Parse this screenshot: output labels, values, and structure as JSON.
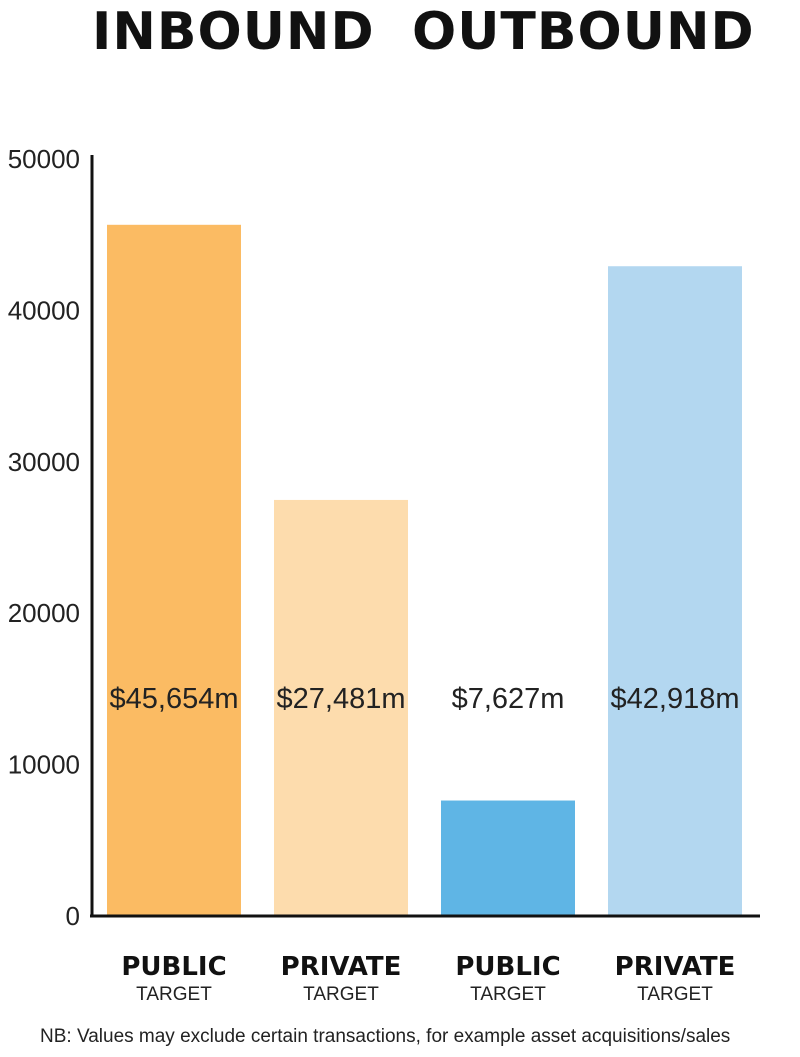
{
  "headings": {
    "inbound": "INBOUND",
    "outbound": "OUTBOUND"
  },
  "footnote": "NB: Values may exclude certain transactions, for example asset acquisitions/sales",
  "chart_data": {
    "type": "bar",
    "categories": [
      {
        "main": "PUBLIC",
        "sub": "TARGET",
        "group": "INBOUND"
      },
      {
        "main": "PRIVATE",
        "sub": "TARGET",
        "group": "INBOUND"
      },
      {
        "main": "PUBLIC",
        "sub": "TARGET",
        "group": "OUTBOUND"
      },
      {
        "main": "PRIVATE",
        "sub": "TARGET",
        "group": "OUTBOUND"
      }
    ],
    "values": [
      45654,
      27481,
      7627,
      42918
    ],
    "data_labels": [
      "$45,654m",
      "$27,481m",
      "$7,627m",
      "$42,918m"
    ],
    "colors": [
      "#fbbb63",
      "#fddcad",
      "#5fb5e5",
      "#b3d7f0"
    ],
    "ylim": [
      0,
      50000
    ],
    "yticks": [
      0,
      10000,
      20000,
      30000,
      40000,
      50000
    ],
    "grid": false,
    "legend": "none"
  }
}
